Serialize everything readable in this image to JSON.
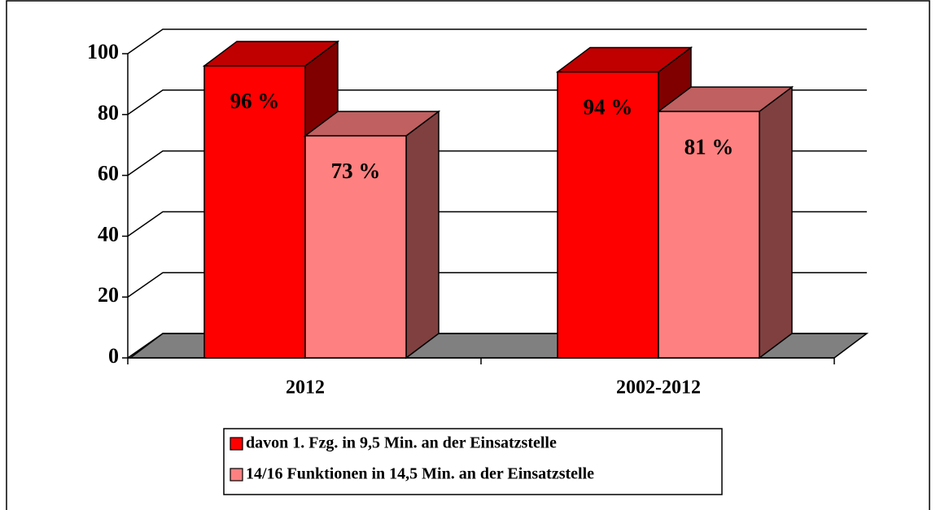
{
  "chart_data": {
    "type": "bar3d",
    "categories": [
      "2012",
      "2002-2012"
    ],
    "series": [
      {
        "name": "davon 1. Fzg. in 9,5 Min. an der Einsatzstelle",
        "color": "#ff0000",
        "side": "#800000",
        "top": "#c00000",
        "values": [
          96,
          94
        ],
        "value_labels": [
          "96 %",
          "94 %"
        ]
      },
      {
        "name": "14/16 Funktionen in 14,5 Min. an der Einsatzstelle",
        "color": "#ff8080",
        "side": "#804040",
        "top": "#c06060",
        "values": [
          73,
          81
        ],
        "value_labels": [
          "73 %",
          "81 %"
        ]
      }
    ],
    "ylim": [
      0,
      100
    ],
    "yticks": [
      0,
      20,
      40,
      60,
      80,
      100
    ],
    "grid": true,
    "legend": "bottom"
  }
}
